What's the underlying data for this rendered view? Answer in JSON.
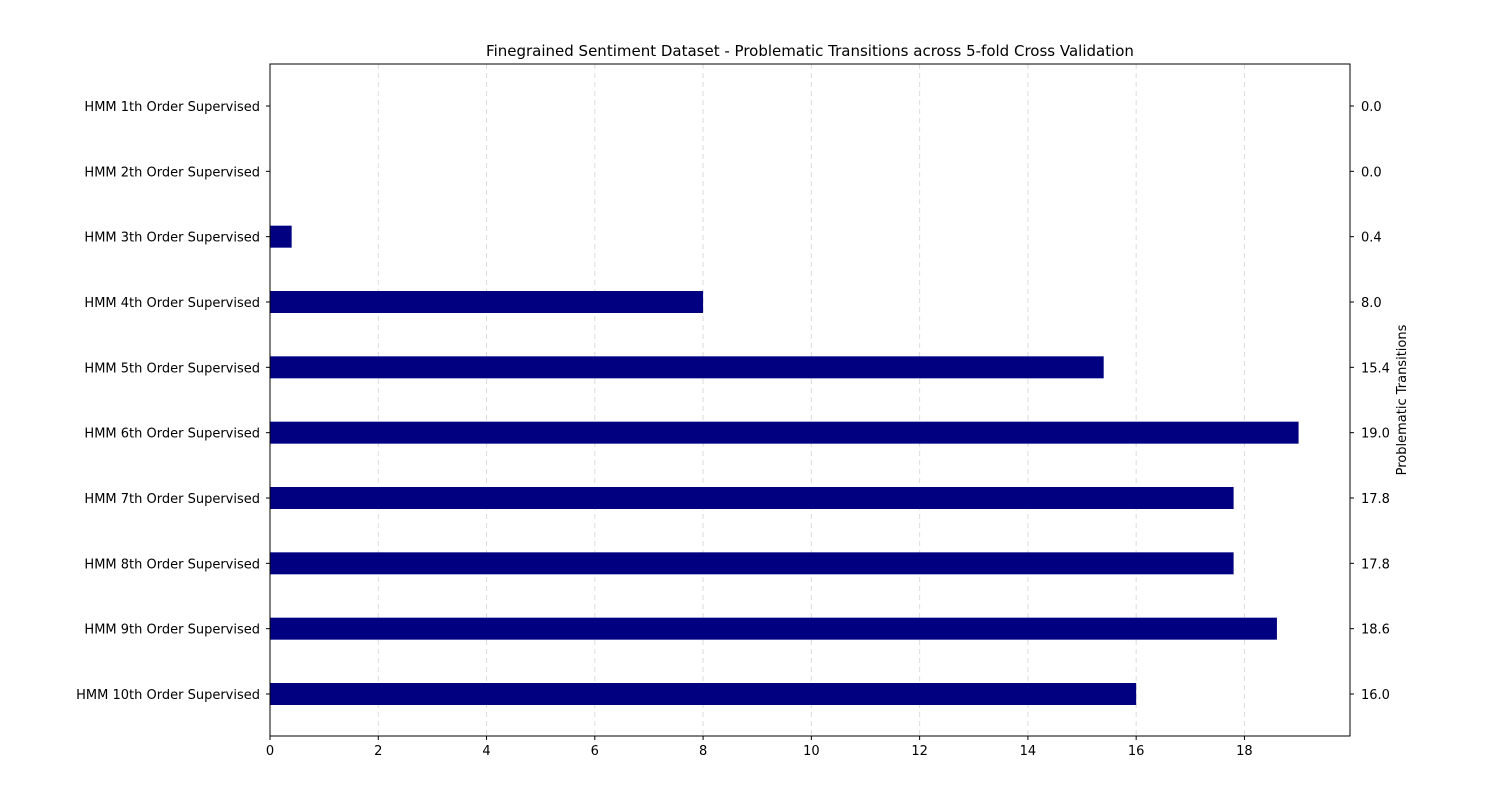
{
  "chart_data": {
    "type": "bar",
    "orientation": "horizontal",
    "title": "Finegrained Sentiment Dataset - Problematic Transitions across 5-fold Cross Validation",
    "ylabel_right": "Problematic Transitions",
    "categories": [
      "HMM 1th Order Supervised",
      "HMM 2th Order Supervised",
      "HMM 3th Order Supervised",
      "HMM 4th Order Supervised",
      "HMM 5th Order Supervised",
      "HMM 6th Order Supervised",
      "HMM 7th Order Supervised",
      "HMM 8th Order Supervised",
      "HMM 9th Order Supervised",
      "HMM 10th Order Supervised"
    ],
    "values": [
      0.0,
      0.0,
      0.4,
      8.0,
      15.4,
      19.0,
      17.8,
      17.8,
      18.6,
      16.0
    ],
    "value_labels": [
      "0.0",
      "0.0",
      "0.4",
      "8.0",
      "15.4",
      "19.0",
      "17.8",
      "17.8",
      "18.6",
      "16.0"
    ],
    "xlim": [
      0,
      19.95
    ],
    "xticks": [
      0,
      2,
      4,
      6,
      8,
      10,
      12,
      14,
      16,
      18
    ],
    "grid": "vertical dashed",
    "bar_color": "#000080"
  }
}
